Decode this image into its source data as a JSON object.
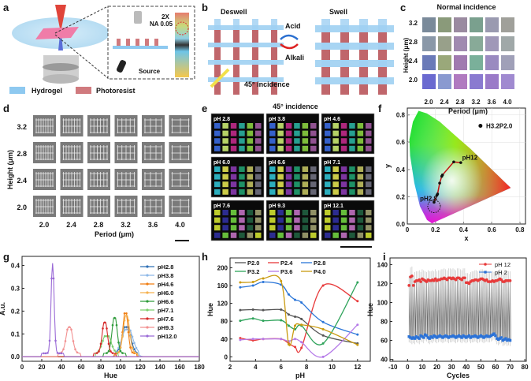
{
  "panel_letters": [
    "a",
    "b",
    "c",
    "d",
    "e",
    "f",
    "g",
    "h",
    "i"
  ],
  "panel_a": {
    "objective_label": "2X",
    "na_label": "NA 0.05",
    "source_label": "Source",
    "legend": [
      {
        "label": "Hydrogel",
        "color": "#8ec9f0"
      },
      {
        "label": "Photoresist",
        "color": "#d07a7e"
      }
    ]
  },
  "panel_b": {
    "left_label": "Deswell",
    "right_label": "Swell",
    "acid_label": "Acid",
    "alkali_label": "Alkali",
    "incidence_label": "45° incidence"
  },
  "panel_c": {
    "title": "Normal incidence",
    "ylabel": "Height (μm)",
    "xlabel": "Period (μm)",
    "heights": [
      "3.2",
      "2.8",
      "2.4",
      "2.0"
    ],
    "periods": [
      "2.0",
      "2.4",
      "2.8",
      "3.2",
      "3.6",
      "4.0"
    ]
  },
  "panel_d": {
    "ylabel": "Height (μm)",
    "xlabel": "Period (μm)",
    "heights": [
      "3.2",
      "2.8",
      "2.4",
      "2.0"
    ],
    "periods": [
      "2.0",
      "2.4",
      "2.8",
      "3.2",
      "3.6",
      "4.0"
    ]
  },
  "panel_e": {
    "title": "45° incidence",
    "subpanels": [
      "pH 2.8",
      "pH 3.8",
      "pH 4.6",
      "pH 6.0",
      "pH 6.6",
      "pH 7.1",
      "pH 7.6",
      "pH 9.3",
      "pH 12.1"
    ]
  },
  "chart_data": [
    {
      "id": "f",
      "type": "scatter",
      "xlabel": "x",
      "ylabel": "y",
      "xlim": [
        0,
        0.84
      ],
      "ylim": [
        0,
        0.85
      ],
      "xticks": [
        0,
        0.2,
        0.4,
        0.6,
        0.8
      ],
      "yticks": [
        0,
        0.2,
        0.4,
        0.6,
        0.8
      ],
      "legend": "H3.2P2.0",
      "legend_placement": "top-right",
      "annotations": [
        "pH2.8",
        "pH12"
      ],
      "points": [
        [
          0.19,
          0.16
        ],
        [
          0.21,
          0.21
        ],
        [
          0.215,
          0.22
        ],
        [
          0.23,
          0.3
        ],
        [
          0.245,
          0.35
        ],
        [
          0.25,
          0.36
        ],
        [
          0.33,
          0.455
        ],
        [
          0.38,
          0.45
        ]
      ]
    },
    {
      "id": "g",
      "type": "line",
      "xlabel": "Hue",
      "ylabel": "A.u.",
      "xlim": [
        0,
        180
      ],
      "ylim": [
        -0.02,
        0.44
      ],
      "xticks": [
        0,
        20,
        40,
        60,
        80,
        100,
        120,
        140,
        160,
        180
      ],
      "yticks": [
        0.0,
        0.1,
        0.2,
        0.3,
        0.4
      ],
      "legend_placement": "top-right",
      "series": [
        {
          "name": "pH2.8",
          "color": "#2e6fb5",
          "peak_hue": 106,
          "peak": 0.13,
          "width": 4
        },
        {
          "name": "pH3.8",
          "color": "#8db8e8",
          "peak_hue": 107,
          "peak": 0.12,
          "width": 5
        },
        {
          "name": "pH4.6",
          "color": "#f07d12",
          "peak_hue": 105,
          "peak": 0.19,
          "width": 2.5
        },
        {
          "name": "pH6.0",
          "color": "#f5b04d",
          "peak_hue": 106,
          "peak": 0.18,
          "width": 3
        },
        {
          "name": "pH6.6",
          "color": "#2e9b3a",
          "peak_hue": 94,
          "peak": 0.17,
          "width": 2.5
        },
        {
          "name": "pH7.1",
          "color": "#7ccf6e",
          "peak_hue": 86,
          "peak": 0.09,
          "width": 4
        },
        {
          "name": "pH7.6",
          "color": "#d62a2a",
          "peak_hue": 84,
          "peak": 0.15,
          "width": 2.5
        },
        {
          "name": "pH9.3",
          "color": "#f29090",
          "peak_hue": 48,
          "peak": 0.13,
          "width": 3
        },
        {
          "name": "pH12.0",
          "color": "#9a6ad6",
          "peak_hue": 31,
          "peak": 0.41,
          "width": 1.5
        }
      ]
    },
    {
      "id": "h",
      "type": "line",
      "xlabel": "pH",
      "ylabel": "Hue",
      "xlim": [
        2,
        13
      ],
      "ylim": [
        -10,
        222
      ],
      "xticks": [
        2,
        4,
        6,
        8,
        10,
        12
      ],
      "yticks": [
        0,
        40,
        80,
        120,
        160,
        200
      ],
      "legend_placement": "top",
      "x": [
        2.8,
        3.8,
        4.6,
        6.0,
        6.6,
        7.1,
        7.6,
        9.3,
        12.0
      ],
      "series": [
        {
          "name": "P2.0",
          "color": "#555555",
          "values": [
            105,
            106,
            105,
            106,
            95,
            90,
            85,
            48,
            30
          ]
        },
        {
          "name": "P2.4",
          "color": "#e8393a",
          "values": [
            42,
            37,
            40,
            40,
            30,
            22,
            20,
            160,
            125
          ]
        },
        {
          "name": "P2.8",
          "color": "#2a75d8",
          "values": [
            156,
            160,
            168,
            162,
            140,
            128,
            122,
            78,
            50
          ]
        },
        {
          "name": "P3.2",
          "color": "#2ea35a",
          "values": [
            81,
            86,
            81,
            82,
            70,
            62,
            70,
            30,
            167
          ]
        },
        {
          "name": "P3.6",
          "color": "#b57ae8",
          "values": [
            38,
            40,
            40,
            40,
            35,
            40,
            33,
            0,
            72
          ]
        },
        {
          "name": "P4.0",
          "color": "#c99a10",
          "values": [
            167,
            168,
            176,
            170,
            28,
            70,
            72,
            62,
            27
          ]
        }
      ]
    },
    {
      "id": "i",
      "type": "scatter",
      "xlabel": "Cycles",
      "ylabel": "Hue",
      "xlim": [
        -12,
        81
      ],
      "ylim": [
        38,
        147
      ],
      "xticks": [
        -10,
        0,
        10,
        20,
        30,
        40,
        50,
        60,
        70,
        80
      ],
      "yticks": [
        40,
        60,
        80,
        100,
        120,
        140
      ],
      "legend_placement": "top-right",
      "series": [
        {
          "name": "pH 12",
          "color": "#e83a3a",
          "values": [
            118,
            127,
            128,
            118,
            122,
            123,
            123,
            124,
            122,
            125,
            124,
            123,
            122,
            124,
            123,
            123,
            124,
            123,
            125,
            123,
            124,
            124,
            125,
            125,
            126,
            125,
            124,
            126,
            126,
            125,
            126,
            125,
            124,
            126,
            126,
            125,
            124,
            126,
            126,
            121,
            121,
            120,
            122,
            123,
            123,
            124,
            124,
            123,
            124,
            125,
            125,
            124,
            123,
            124,
            122,
            122,
            122,
            123,
            122,
            123,
            123,
            124,
            125,
            124,
            122,
            122,
            123,
            123,
            123,
            123
          ]
        },
        {
          "name": "pH 2",
          "color": "#2a72d8",
          "values": [
            64,
            63,
            62,
            63,
            62,
            64,
            63,
            62,
            65,
            64,
            63,
            66,
            65,
            63,
            62,
            64,
            63,
            65,
            64,
            63,
            64,
            65,
            64,
            63,
            64,
            65,
            64,
            63,
            64,
            64,
            65,
            64,
            63,
            64,
            65,
            64,
            63,
            65,
            64,
            63,
            64,
            65,
            63,
            64,
            64,
            65,
            64,
            63,
            64,
            65,
            64,
            63,
            64,
            65,
            64,
            64,
            65,
            66,
            67,
            65,
            62,
            61,
            62,
            63,
            60,
            61,
            62,
            60,
            61,
            60
          ]
        }
      ]
    }
  ]
}
